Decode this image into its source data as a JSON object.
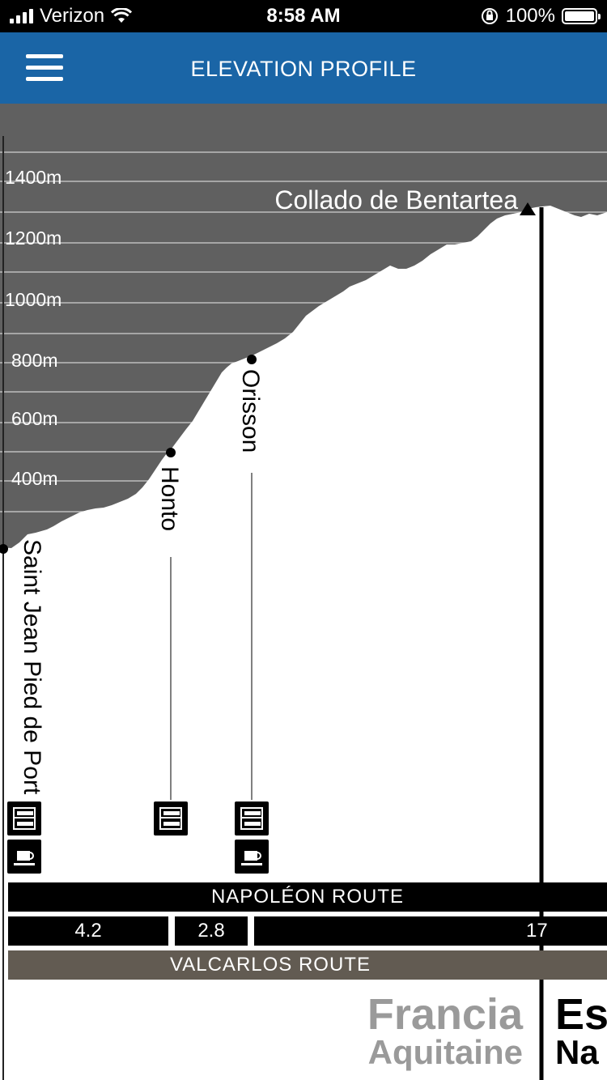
{
  "status_bar": {
    "carrier": "Verizon",
    "time": "8:58 AM",
    "battery_percent": "100%"
  },
  "header": {
    "title": "ELEVATION PROFILE",
    "menu_icon": "hamburger-menu-icon"
  },
  "chart_data": {
    "type": "area",
    "ylabel": "",
    "y_ticks": [
      "1400m",
      "1200m",
      "1000m",
      "800m",
      "600m",
      "400m"
    ],
    "ylim": [
      0,
      1500
    ],
    "colors": {
      "sky": "#606060",
      "terrain": "#ffffff",
      "grid": "#bdbdbd"
    },
    "summit": {
      "name": "Collado de Bentartea",
      "elevation": 1337
    },
    "waypoints": [
      {
        "name": "Saint Jean Pied de Port",
        "km": 0,
        "elevation": 170
      },
      {
        "name": "Honto",
        "km": 4.2,
        "elevation": 500
      },
      {
        "name": "Orisson",
        "km": 7.0,
        "elevation": 800
      }
    ]
  },
  "routes": {
    "napoleon": "NAPOLÉON ROUTE",
    "valcarlos": "VALCARLOS ROUTE",
    "segments": [
      "4.2",
      "2.8",
      "17"
    ]
  },
  "regions": {
    "left_country": "Francia",
    "left_region": "Aquitaine",
    "right_country": "Es",
    "right_region": "Na"
  },
  "service_icons": {
    "lodging": "bunk-bed-icon",
    "food": "coffee-cup-icon"
  }
}
